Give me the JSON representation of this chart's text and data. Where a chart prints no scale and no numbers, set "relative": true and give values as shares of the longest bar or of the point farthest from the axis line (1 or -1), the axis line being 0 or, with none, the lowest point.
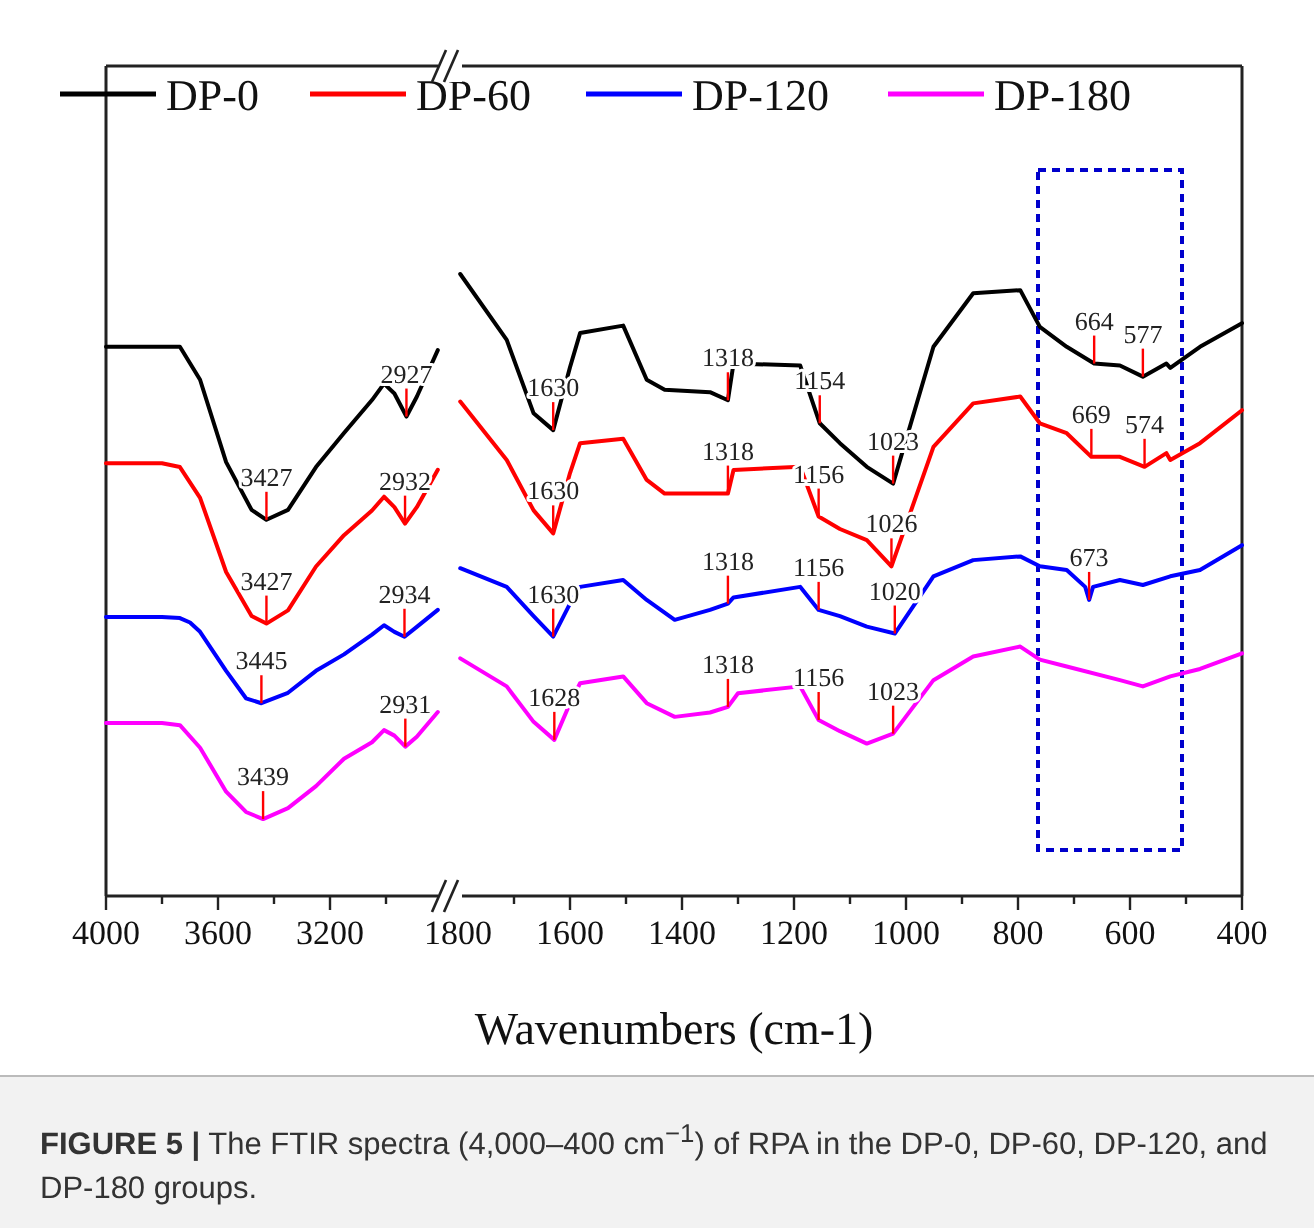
{
  "chart_data": [
    {
      "type": "line",
      "relative": true,
      "xlim": [
        4000,
        2800
      ],
      "xticks": [
        4000,
        {
          "value": 3800,
          "label": null
        },
        3600,
        {
          "value": 3400,
          "label": null
        },
        3200,
        {
          "value": 3000,
          "label": null
        }
      ],
      "legend": "top",
      "tick_labels": "x",
      "series": [
        {
          "name": "DP-0",
          "color": "#000000",
          "x": [
            4000,
            3800,
            3736,
            3664,
            3571,
            3480,
            3427,
            3350,
            3250,
            3150,
            3050,
            3007,
            2970,
            2927,
            2890,
            2815
          ],
          "values": [
            1.0,
            1.0,
            1.0,
            0.94,
            0.79,
            0.703,
            0.685,
            0.703,
            0.781,
            0.843,
            0.903,
            0.933,
            0.915,
            0.873,
            0.909,
            0.994
          ]
        },
        {
          "name": "DP-60",
          "color": "#ff0000",
          "x": [
            4000,
            3800,
            3736,
            3664,
            3571,
            3480,
            3427,
            3350,
            3250,
            3150,
            3050,
            3007,
            2970,
            2932,
            2890,
            2815
          ],
          "values": [
            0.788,
            0.788,
            0.781,
            0.725,
            0.59,
            0.51,
            0.496,
            0.52,
            0.6,
            0.657,
            0.702,
            0.727,
            0.708,
            0.678,
            0.708,
            0.776
          ]
        },
        {
          "name": "DP-120",
          "color": "#0000ff",
          "x": [
            4000,
            3800,
            3736,
            3700,
            3664,
            3571,
            3500,
            3445,
            3350,
            3250,
            3150,
            3050,
            3007,
            2970,
            2934,
            2890,
            2815
          ],
          "values": [
            0.508,
            0.508,
            0.506,
            0.498,
            0.481,
            0.41,
            0.36,
            0.351,
            0.37,
            0.41,
            0.44,
            0.476,
            0.493,
            0.481,
            0.472,
            0.49,
            0.521
          ]
        },
        {
          "name": "DP-180",
          "color": "#ff00ff",
          "x": [
            4000,
            3800,
            3736,
            3664,
            3571,
            3500,
            3439,
            3350,
            3250,
            3150,
            3050,
            3007,
            2970,
            2931,
            2890,
            2815
          ],
          "values": [
            0.315,
            0.315,
            0.311,
            0.27,
            0.19,
            0.153,
            0.14,
            0.16,
            0.2,
            0.25,
            0.28,
            0.302,
            0.292,
            0.272,
            0.29,
            0.335
          ]
        }
      ],
      "annotations": [
        {
          "text": "2927",
          "x": 2927,
          "y": 0.873
        },
        {
          "text": "3427",
          "x": 3427,
          "y": 0.685
        },
        {
          "text": "2932",
          "x": 2932,
          "y": 0.678
        },
        {
          "text": "3427",
          "x": 3427,
          "y": 0.496
        },
        {
          "text": "2934",
          "x": 2934,
          "y": 0.472
        },
        {
          "text": "3445",
          "x": 3445,
          "y": 0.351
        },
        {
          "text": "2931",
          "x": 2931,
          "y": 0.272
        },
        {
          "text": "3439",
          "x": 3439,
          "y": 0.14
        },
        "FIGURE 5 | The FTIR spectra (4,000–400 cm$^{−1}$) of RPA in the DP-0, DP-60, DP-120, and DP-180 groups."
      ]
    },
    {
      "type": "line",
      "relative": true,
      "xlim": [
        1800,
        400
      ],
      "xticks": [
        1800,
        {
          "value": 1700,
          "label": null
        },
        1600,
        {
          "value": 1500,
          "label": null
        },
        1400,
        {
          "value": 1300,
          "label": null
        },
        1200,
        {
          "value": 1100,
          "label": null
        },
        1000,
        {
          "value": 900,
          "label": null
        },
        800,
        {
          "value": 700,
          "label": null
        },
        600,
        {
          "value": 500,
          "label": null
        },
        400
      ],
      "tick_labels": "x",
      "xlabel": "Wavenumbers (cm-1)",
      "series": [
        {
          "color": "#000000",
          "x": [
            1796,
            1713,
            1665,
            1630,
            1600,
            1582,
            1505,
            1463,
            1431,
            1350,
            1318,
            1308,
            1189,
            1154,
            1118,
            1070,
            1023,
            951,
            880,
            796,
            761,
            713,
            664,
            618,
            577,
            535,
            528,
            475,
            400
          ],
          "values": [
            1.0,
            0.894,
            0.776,
            0.749,
            0.85,
            0.905,
            0.917,
            0.83,
            0.814,
            0.81,
            0.797,
            0.856,
            0.853,
            0.76,
            0.728,
            0.69,
            0.663,
            0.883,
            0.969,
            0.974,
            0.915,
            0.883,
            0.856,
            0.853,
            0.835,
            0.856,
            0.849,
            0.883,
            0.921
          ]
        },
        {
          "color": "#ff0000",
          "x": [
            1796,
            1713,
            1665,
            1630,
            1600,
            1582,
            1505,
            1463,
            1431,
            1350,
            1318,
            1308,
            1189,
            1156,
            1118,
            1070,
            1026,
            951,
            880,
            796,
            761,
            713,
            669,
            618,
            574,
            535,
            528,
            475,
            400
          ],
          "values": [
            0.795,
            0.701,
            0.62,
            0.583,
            0.68,
            0.728,
            0.735,
            0.669,
            0.647,
            0.647,
            0.647,
            0.685,
            0.69,
            0.61,
            0.59,
            0.572,
            0.53,
            0.722,
            0.792,
            0.803,
            0.76,
            0.744,
            0.706,
            0.706,
            0.69,
            0.712,
            0.701,
            0.728,
            0.781
          ]
        },
        {
          "color": "#0000ff",
          "x": [
            1796,
            1713,
            1665,
            1630,
            1600,
            1582,
            1505,
            1463,
            1413,
            1350,
            1318,
            1308,
            1189,
            1156,
            1118,
            1070,
            1020,
            951,
            880,
            796,
            761,
            713,
            680,
            673,
            666,
            618,
            577,
            528,
            475,
            400
          ],
          "values": [
            0.527,
            0.497,
            0.45,
            0.417,
            0.47,
            0.497,
            0.508,
            0.476,
            0.444,
            0.46,
            0.47,
            0.48,
            0.497,
            0.46,
            0.45,
            0.433,
            0.422,
            0.514,
            0.54,
            0.546,
            0.53,
            0.524,
            0.497,
            0.476,
            0.497,
            0.508,
            0.5,
            0.514,
            0.524,
            0.564
          ]
        },
        {
          "color": "#ff00ff",
          "x": [
            1796,
            1713,
            1665,
            1628,
            1600,
            1582,
            1505,
            1463,
            1413,
            1350,
            1318,
            1300,
            1189,
            1156,
            1118,
            1070,
            1023,
            951,
            880,
            796,
            761,
            713,
            618,
            577,
            528,
            475,
            400
          ],
          "values": [
            0.382,
            0.337,
            0.28,
            0.251,
            0.31,
            0.342,
            0.353,
            0.31,
            0.288,
            0.295,
            0.304,
            0.326,
            0.337,
            0.283,
            0.265,
            0.245,
            0.261,
            0.347,
            0.385,
            0.401,
            0.38,
            0.369,
            0.347,
            0.337,
            0.353,
            0.365,
            0.39
          ]
        }
      ],
      "annotations": [
        {
          "text": "1630",
          "x": 1630,
          "y": 0.749
        },
        {
          "text": "1318",
          "x": 1318,
          "y": 0.797
        },
        {
          "text": "1154",
          "x": 1154,
          "y": 0.76
        },
        {
          "text": "1023",
          "x": 1023,
          "y": 0.663
        },
        {
          "text": "664",
          "x": 664,
          "y": 0.856
        },
        {
          "text": "577",
          "x": 577,
          "y": 0.835
        },
        {
          "text": "1630",
          "x": 1630,
          "y": 0.583
        },
        {
          "text": "1318",
          "x": 1318,
          "y": 0.647
        },
        {
          "text": "1156",
          "x": 1156,
          "y": 0.61
        },
        {
          "text": "1026",
          "x": 1026,
          "y": 0.53
        },
        {
          "text": "669",
          "x": 669,
          "y": 0.706
        },
        {
          "text": "574",
          "x": 574,
          "y": 0.69
        },
        {
          "text": "1630",
          "x": 1630,
          "y": 0.417
        },
        {
          "text": "1318",
          "x": 1318,
          "y": 0.47
        },
        {
          "text": "1156",
          "x": 1156,
          "y": 0.46
        },
        {
          "text": "1020",
          "x": 1020,
          "y": 0.422
        },
        {
          "text": "673",
          "x": 673,
          "y": 0.476
        },
        {
          "text": "1628",
          "x": 1628,
          "y": 0.251
        },
        {
          "text": "1318",
          "x": 1318,
          "y": 0.304
        },
        {
          "text": "1156",
          "x": 1156,
          "y": 0.283
        },
        {
          "text": "1023",
          "x": 1023,
          "y": 0.261
        }
      ]
    }
  ]
}
